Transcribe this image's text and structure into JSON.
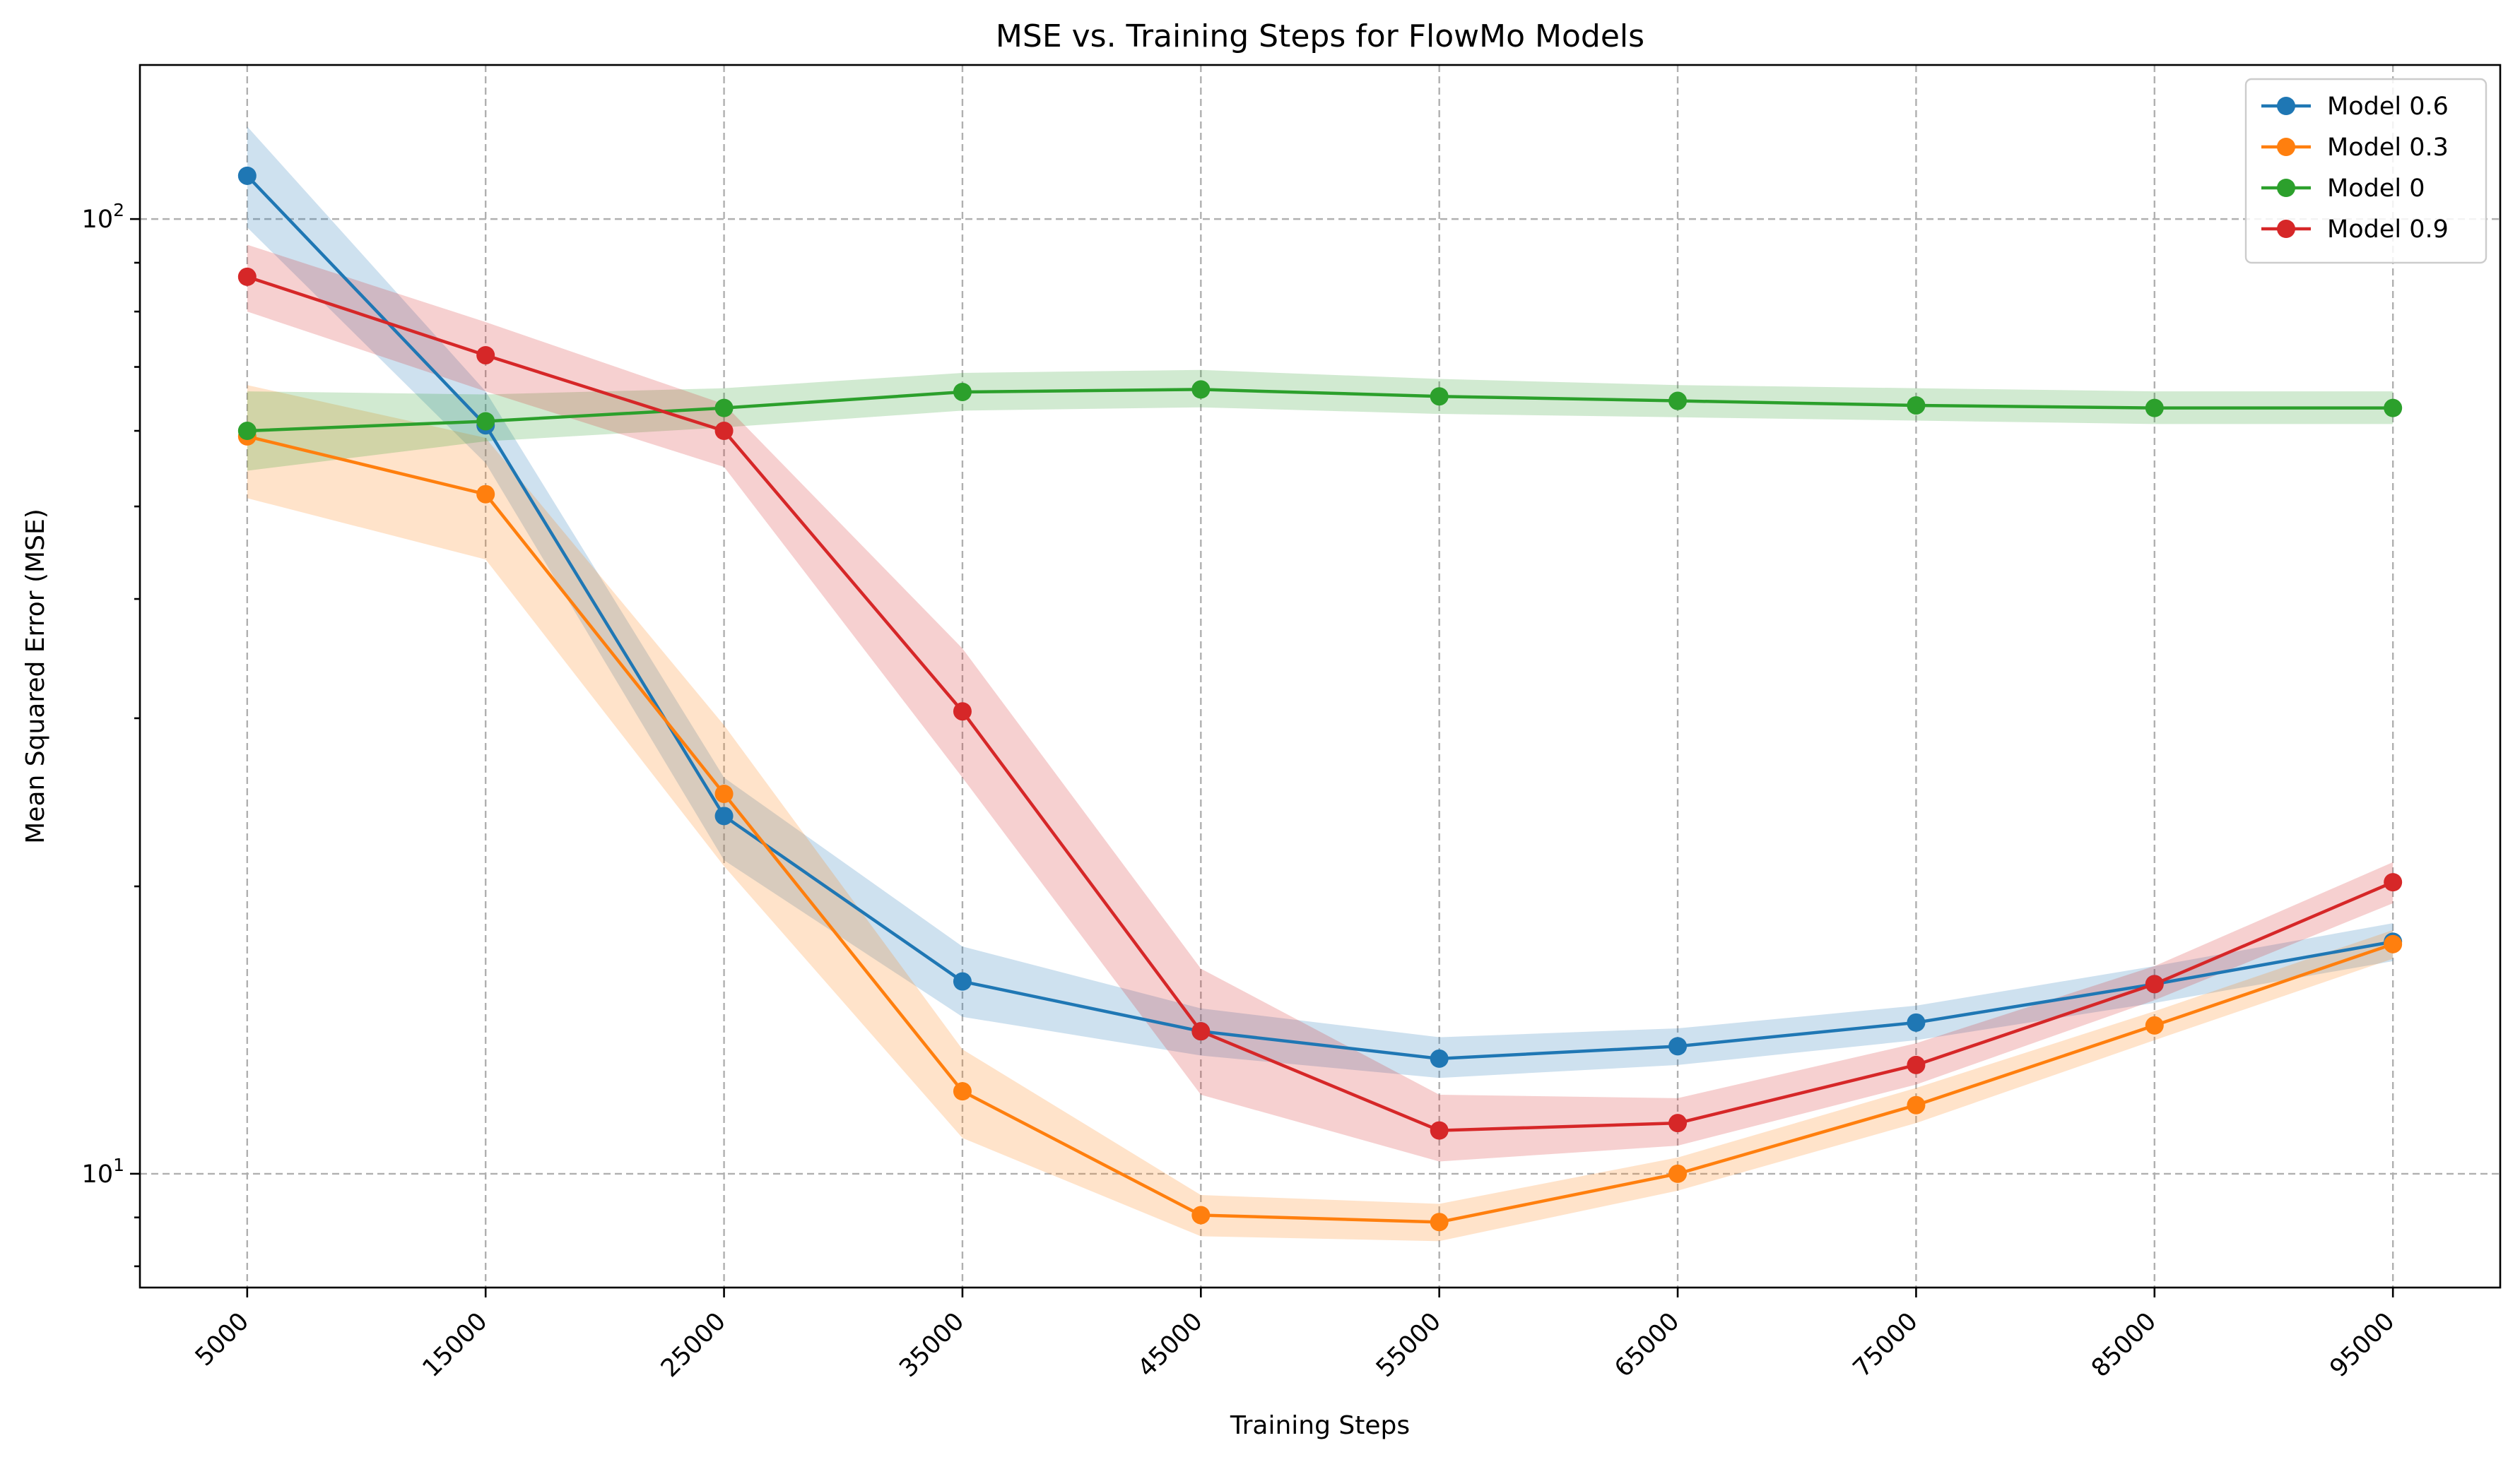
{
  "chart_data": {
    "type": "line",
    "title": "MSE vs. Training Steps for FlowMo Models",
    "xlabel": "Training Steps",
    "ylabel": "Mean Squared Error (MSE)",
    "yscale": "log",
    "ylim": [
      7.6,
      145
    ],
    "grid": true,
    "legend_position": "top-right",
    "x": [
      5000,
      15000,
      25000,
      35000,
      45000,
      55000,
      65000,
      75000,
      85000,
      95000
    ],
    "x_tick_labels": [
      "5000",
      "15000",
      "25000",
      "35000",
      "45000",
      "55000",
      "65000",
      "75000",
      "85000",
      "95000"
    ],
    "y_ticks": [
      {
        "value": 10,
        "base": "10",
        "exp": "1"
      },
      {
        "value": 100,
        "base": "10",
        "exp": "2"
      }
    ],
    "series": [
      {
        "name": "Model 0.6",
        "color": "#1f77b4",
        "band_color": "#1f77b4",
        "values": [
          111,
          60.8,
          23.7,
          15.9,
          14.1,
          13.2,
          13.6,
          14.4,
          15.8,
          17.5
        ],
        "lower": [
          98,
          55.5,
          21.3,
          14.6,
          13.3,
          12.6,
          13.0,
          13.8,
          15.1,
          16.7
        ],
        "upper": [
          125,
          66.0,
          26.0,
          17.3,
          14.9,
          13.9,
          14.2,
          15.0,
          16.5,
          18.3
        ]
      },
      {
        "name": "Model 0.3",
        "color": "#ff7f0e",
        "band_color": "#ff7f0e",
        "values": [
          59.2,
          51.5,
          25.0,
          12.2,
          9.05,
          8.9,
          10.0,
          11.8,
          14.3,
          17.4
        ],
        "lower": [
          51.0,
          44.0,
          21.0,
          10.9,
          8.6,
          8.5,
          9.6,
          11.3,
          13.8,
          16.8
        ],
        "upper": [
          67.0,
          59.0,
          29.5,
          13.5,
          9.5,
          9.3,
          10.4,
          12.3,
          14.8,
          18.0
        ]
      },
      {
        "name": "Model 0",
        "color": "#2ca02c",
        "band_color": "#2ca02c",
        "values": [
          60.0,
          61.4,
          63.4,
          65.9,
          66.3,
          65.2,
          64.5,
          63.8,
          63.4,
          63.4
        ],
        "lower": [
          54.5,
          58.5,
          60.5,
          63.0,
          63.5,
          62.5,
          62.0,
          61.5,
          61.0,
          61.0
        ],
        "upper": [
          66.0,
          65.5,
          66.5,
          69.0,
          69.5,
          68.0,
          67.0,
          66.5,
          66.0,
          66.0
        ]
      },
      {
        "name": "Model 0.9",
        "color": "#d62728",
        "band_color": "#d62728",
        "values": [
          87.0,
          72.0,
          60.0,
          30.5,
          14.1,
          11.1,
          11.3,
          13.0,
          15.8,
          20.2
        ],
        "lower": [
          80.0,
          66.0,
          55.0,
          26.0,
          12.1,
          10.3,
          10.7,
          12.4,
          15.2,
          19.2
        ],
        "upper": [
          94.0,
          78.0,
          64.0,
          35.5,
          16.4,
          12.1,
          12.0,
          13.7,
          16.5,
          21.2
        ]
      }
    ]
  }
}
